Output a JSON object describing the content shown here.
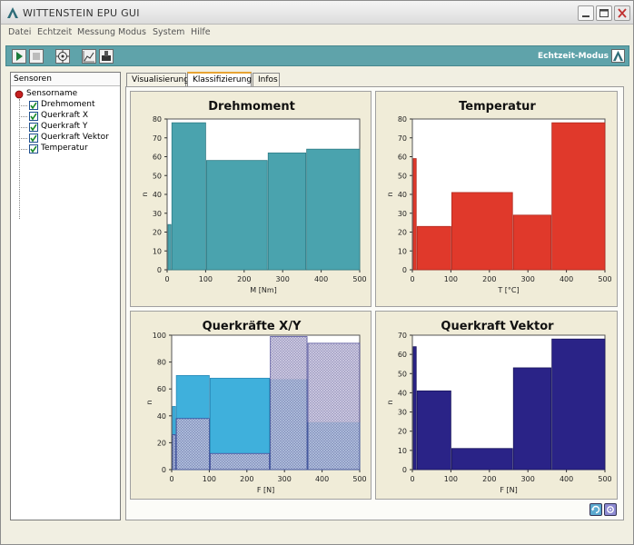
{
  "window": {
    "title": "WITTENSTEIN EPU GUI"
  },
  "menu": [
    "Datei",
    "Echtzeit",
    "Messung",
    "Modus",
    "System",
    "Hilfe"
  ],
  "toolbar": {
    "mode_label": "Echtzeit-Modus"
  },
  "sidebar": {
    "header": "Sensoren",
    "root": "Sensorname",
    "items": [
      "Drehmoment",
      "Querkraft X",
      "Querkraft Y",
      "Querkraft Vektor",
      "Temperatur"
    ]
  },
  "tabs": [
    "Visualisierung",
    "Klassifizierung",
    "Infos"
  ],
  "colors": {
    "toolbar": "#5fa3aa",
    "drehmoment": "#4aa3ae",
    "temperatur": "#e0392b",
    "querkraft_x": "#3fb0dc",
    "querkraft_y": "#2f4fa8",
    "querkraft_vektor": "#2a2387"
  },
  "chart_data": [
    {
      "type": "bar",
      "title": "Drehmoment",
      "xlabel": "M [Nm]",
      "ylabel": "n",
      "xlim": [
        0,
        500
      ],
      "ylim": [
        0,
        80
      ],
      "xticks": [
        0,
        100,
        200,
        300,
        400,
        500
      ],
      "yticks": [
        0,
        10,
        20,
        30,
        40,
        50,
        60,
        70,
        80
      ],
      "bins": [
        {
          "x0": 0,
          "x1": 10,
          "value": 24
        },
        {
          "x0": 10,
          "x1": 100,
          "value": 78
        },
        {
          "x0": 100,
          "x1": 260,
          "value": 58
        },
        {
          "x0": 260,
          "x1": 360,
          "value": 62
        },
        {
          "x0": 360,
          "x1": 500,
          "value": 64
        }
      ]
    },
    {
      "type": "bar",
      "title": "Temperatur",
      "xlabel": "T [°C]",
      "ylabel": "n",
      "xlim": [
        0,
        500
      ],
      "ylim": [
        0,
        80
      ],
      "xticks": [
        0,
        100,
        200,
        300,
        400,
        500
      ],
      "yticks": [
        0,
        10,
        20,
        30,
        40,
        50,
        60,
        70,
        80
      ],
      "bins": [
        {
          "x0": 0,
          "x1": 10,
          "value": 59
        },
        {
          "x0": 10,
          "x1": 100,
          "value": 23
        },
        {
          "x0": 100,
          "x1": 260,
          "value": 41
        },
        {
          "x0": 260,
          "x1": 360,
          "value": 29
        },
        {
          "x0": 360,
          "x1": 500,
          "value": 78
        }
      ]
    },
    {
      "type": "bar",
      "title": "Querkräfte X/Y",
      "xlabel": "F [N]",
      "ylabel": "n",
      "xlim": [
        0,
        500
      ],
      "ylim": [
        0,
        100
      ],
      "xticks": [
        0,
        100,
        200,
        300,
        400,
        500
      ],
      "yticks": [
        0,
        20,
        40,
        60,
        80,
        100
      ],
      "series": [
        {
          "bins": [
            {
              "x0": 0,
              "x1": 10,
              "value": 47
            },
            {
              "x0": 10,
              "x1": 100,
              "value": 70
            },
            {
              "x0": 100,
              "x1": 260,
              "value": 68
            },
            {
              "x0": 260,
              "x1": 360,
              "value": 67
            },
            {
              "x0": 360,
              "x1": 500,
              "value": 35
            }
          ]
        },
        {
          "bins": [
            {
              "x0": 0,
              "x1": 10,
              "value": 26
            },
            {
              "x0": 10,
              "x1": 100,
              "value": 38
            },
            {
              "x0": 100,
              "x1": 260,
              "value": 12
            },
            {
              "x0": 260,
              "x1": 360,
              "value": 99
            },
            {
              "x0": 360,
              "x1": 500,
              "value": 94
            }
          ]
        }
      ]
    },
    {
      "type": "bar",
      "title": "Querkraft Vektor",
      "xlabel": "F [N]",
      "ylabel": "n",
      "xlim": [
        0,
        500
      ],
      "ylim": [
        0,
        70
      ],
      "xticks": [
        0,
        100,
        200,
        300,
        400,
        500
      ],
      "yticks": [
        0,
        10,
        20,
        30,
        40,
        50,
        60,
        70
      ],
      "bins": [
        {
          "x0": 0,
          "x1": 10,
          "value": 64
        },
        {
          "x0": 10,
          "x1": 100,
          "value": 41
        },
        {
          "x0": 100,
          "x1": 260,
          "value": 11
        },
        {
          "x0": 260,
          "x1": 360,
          "value": 53
        },
        {
          "x0": 360,
          "x1": 500,
          "value": 68
        }
      ]
    }
  ]
}
